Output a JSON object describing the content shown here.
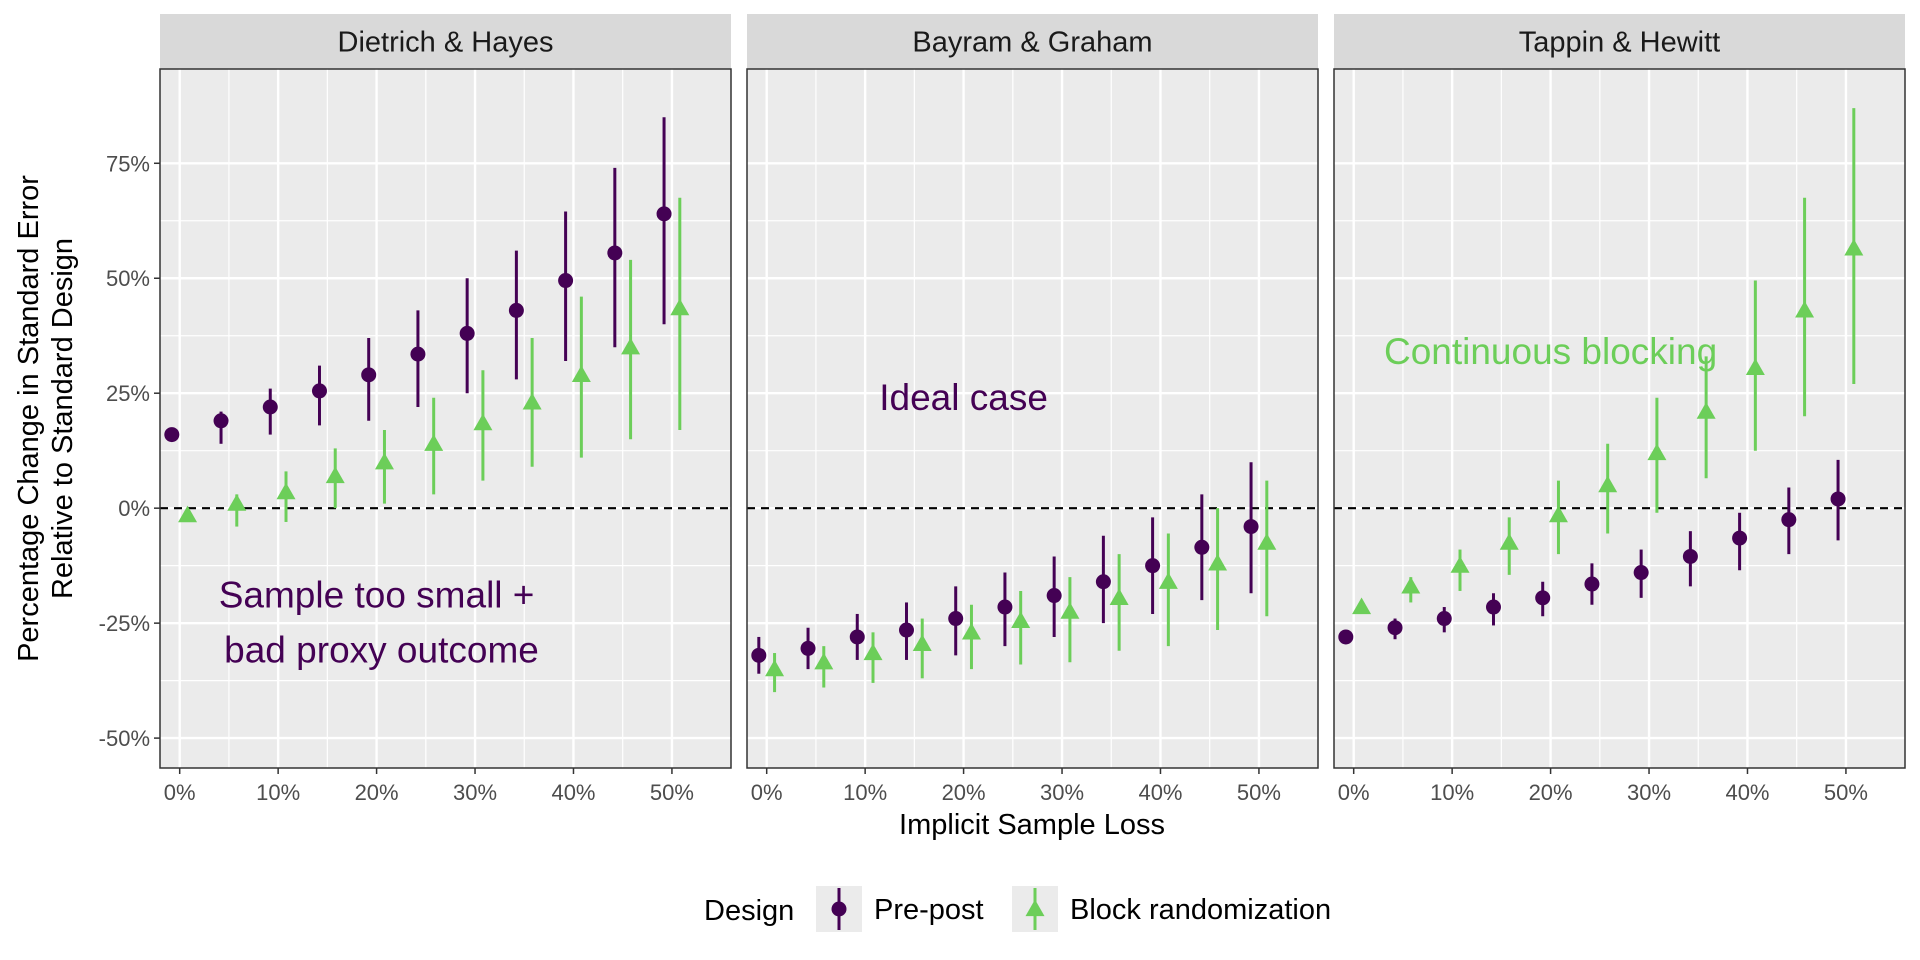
{
  "chart_data": {
    "type": "scatter",
    "subtype": "point-range faceted",
    "facets": [
      "Dietrich & Hayes",
      "Bayram & Graham",
      "Tappin & Hewitt"
    ],
    "x": [
      0,
      5,
      10,
      15,
      20,
      25,
      30,
      35,
      40,
      45,
      50
    ],
    "x_tick_labels": [
      "0%",
      "10%",
      "20%",
      "30%",
      "40%",
      "50%"
    ],
    "x_tick_values": [
      0,
      10,
      20,
      30,
      40,
      50
    ],
    "xlabel": "Implicit Sample Loss",
    "xlim": [
      -2,
      56
    ],
    "ylabel_lines": [
      "Percentage Change in Standard Error",
      "Relative to Standard Design"
    ],
    "y_tick_labels": [
      "-50%",
      "-25%",
      "0%",
      "25%",
      "50%",
      "75%"
    ],
    "y_tick_values": [
      -50,
      -25,
      0,
      25,
      50,
      75
    ],
    "ylim": [
      -56.5,
      95.5
    ],
    "reference_line": 0,
    "grid": true,
    "legend": {
      "title": "Design",
      "position": "bottom",
      "entries": [
        "Pre-post",
        "Block randomization"
      ]
    },
    "series": [
      {
        "name": "Pre-post",
        "color": "#440154",
        "shape": "circle",
        "x_offset": -0.8,
        "panels": [
          {
            "y": [
              16,
              19,
              22,
              25.5,
              29,
              33.5,
              38,
              43,
              49.5,
              55.5,
              64
            ],
            "lo": [
              16,
              14,
              16,
              18,
              19,
              22,
              25,
              28,
              32,
              35,
              40
            ],
            "hi": [
              16,
              21,
              26,
              31,
              37,
              43,
              50,
              56,
              64.5,
              74,
              85
            ]
          },
          {
            "y": [
              -32,
              -30.5,
              -28,
              -26.5,
              -24,
              -21.5,
              -19,
              -16,
              -12.5,
              -8.5,
              -4
            ],
            "lo": [
              -36,
              -35,
              -33,
              -33,
              -32,
              -30,
              -28,
              -25,
              -23,
              -20,
              -18.5
            ],
            "hi": [
              -28,
              -26,
              -23,
              -20.5,
              -17,
              -14,
              -10.5,
              -6,
              -2,
              3,
              10
            ]
          },
          {
            "y": [
              -28,
              -26,
              -24,
              -21.5,
              -19.5,
              -16.5,
              -14,
              -10.5,
              -6.5,
              -2.5,
              2
            ],
            "lo": [
              -29.5,
              -28.5,
              -27,
              -25.5,
              -23.5,
              -21,
              -19.5,
              -17,
              -13.5,
              -10,
              -7
            ],
            "hi": [
              -27,
              -24,
              -21.5,
              -18.5,
              -16,
              -12,
              -9,
              -5,
              -1,
              4.5,
              10.5
            ]
          }
        ]
      },
      {
        "name": "Block randomization",
        "color": "#6CCE59",
        "shape": "triangle",
        "x_offset": 0.8,
        "panels": [
          {
            "y": [
              -1.5,
              1,
              3.5,
              7,
              10,
              14,
              18.5,
              23,
              29,
              35,
              43.5
            ],
            "lo": [
              -1.5,
              -4,
              -3,
              0,
              1,
              3,
              6,
              9,
              11,
              15,
              17
            ],
            "hi": [
              -1.5,
              3,
              8,
              13,
              17,
              24,
              30,
              37,
              46,
              54,
              67.5
            ]
          },
          {
            "y": [
              -35,
              -33.5,
              -31.5,
              -29.5,
              -27,
              -24.5,
              -22.5,
              -19.5,
              -16,
              -12,
              -7.5
            ],
            "lo": [
              -40,
              -39,
              -38,
              -37,
              -35,
              -34,
              -33.5,
              -31,
              -30,
              -26.5,
              -23.5
            ],
            "hi": [
              -31.5,
              -30,
              -27,
              -24,
              -21,
              -18,
              -15,
              -10,
              -5.5,
              0,
              6
            ]
          },
          {
            "y": [
              -21.5,
              -17,
              -12.5,
              -7.5,
              -1.5,
              5,
              12,
              21,
              30.5,
              43,
              56.5
            ],
            "lo": [
              -21.5,
              -20.5,
              -18,
              -14.5,
              -10,
              -5.5,
              -1,
              6.5,
              12.5,
              20,
              27
            ],
            "hi": [
              -21.5,
              -15,
              -9,
              -2,
              6,
              14,
              24,
              33,
              49.5,
              67.5,
              87
            ]
          }
        ]
      }
    ],
    "annotations": [
      {
        "facet": 0,
        "text": "Sample too small +",
        "x": 20,
        "y": -19,
        "color": "#440154"
      },
      {
        "facet": 0,
        "text": "bad proxy outcome",
        "x": 20.5,
        "y": -31,
        "color": "#440154"
      },
      {
        "facet": 1,
        "text": "Ideal case",
        "x": 20,
        "y": 24,
        "color": "#440154"
      },
      {
        "facet": 2,
        "text": "Continuous blocking",
        "x": 20,
        "y": 34,
        "color": "#6CCE59"
      }
    ]
  }
}
